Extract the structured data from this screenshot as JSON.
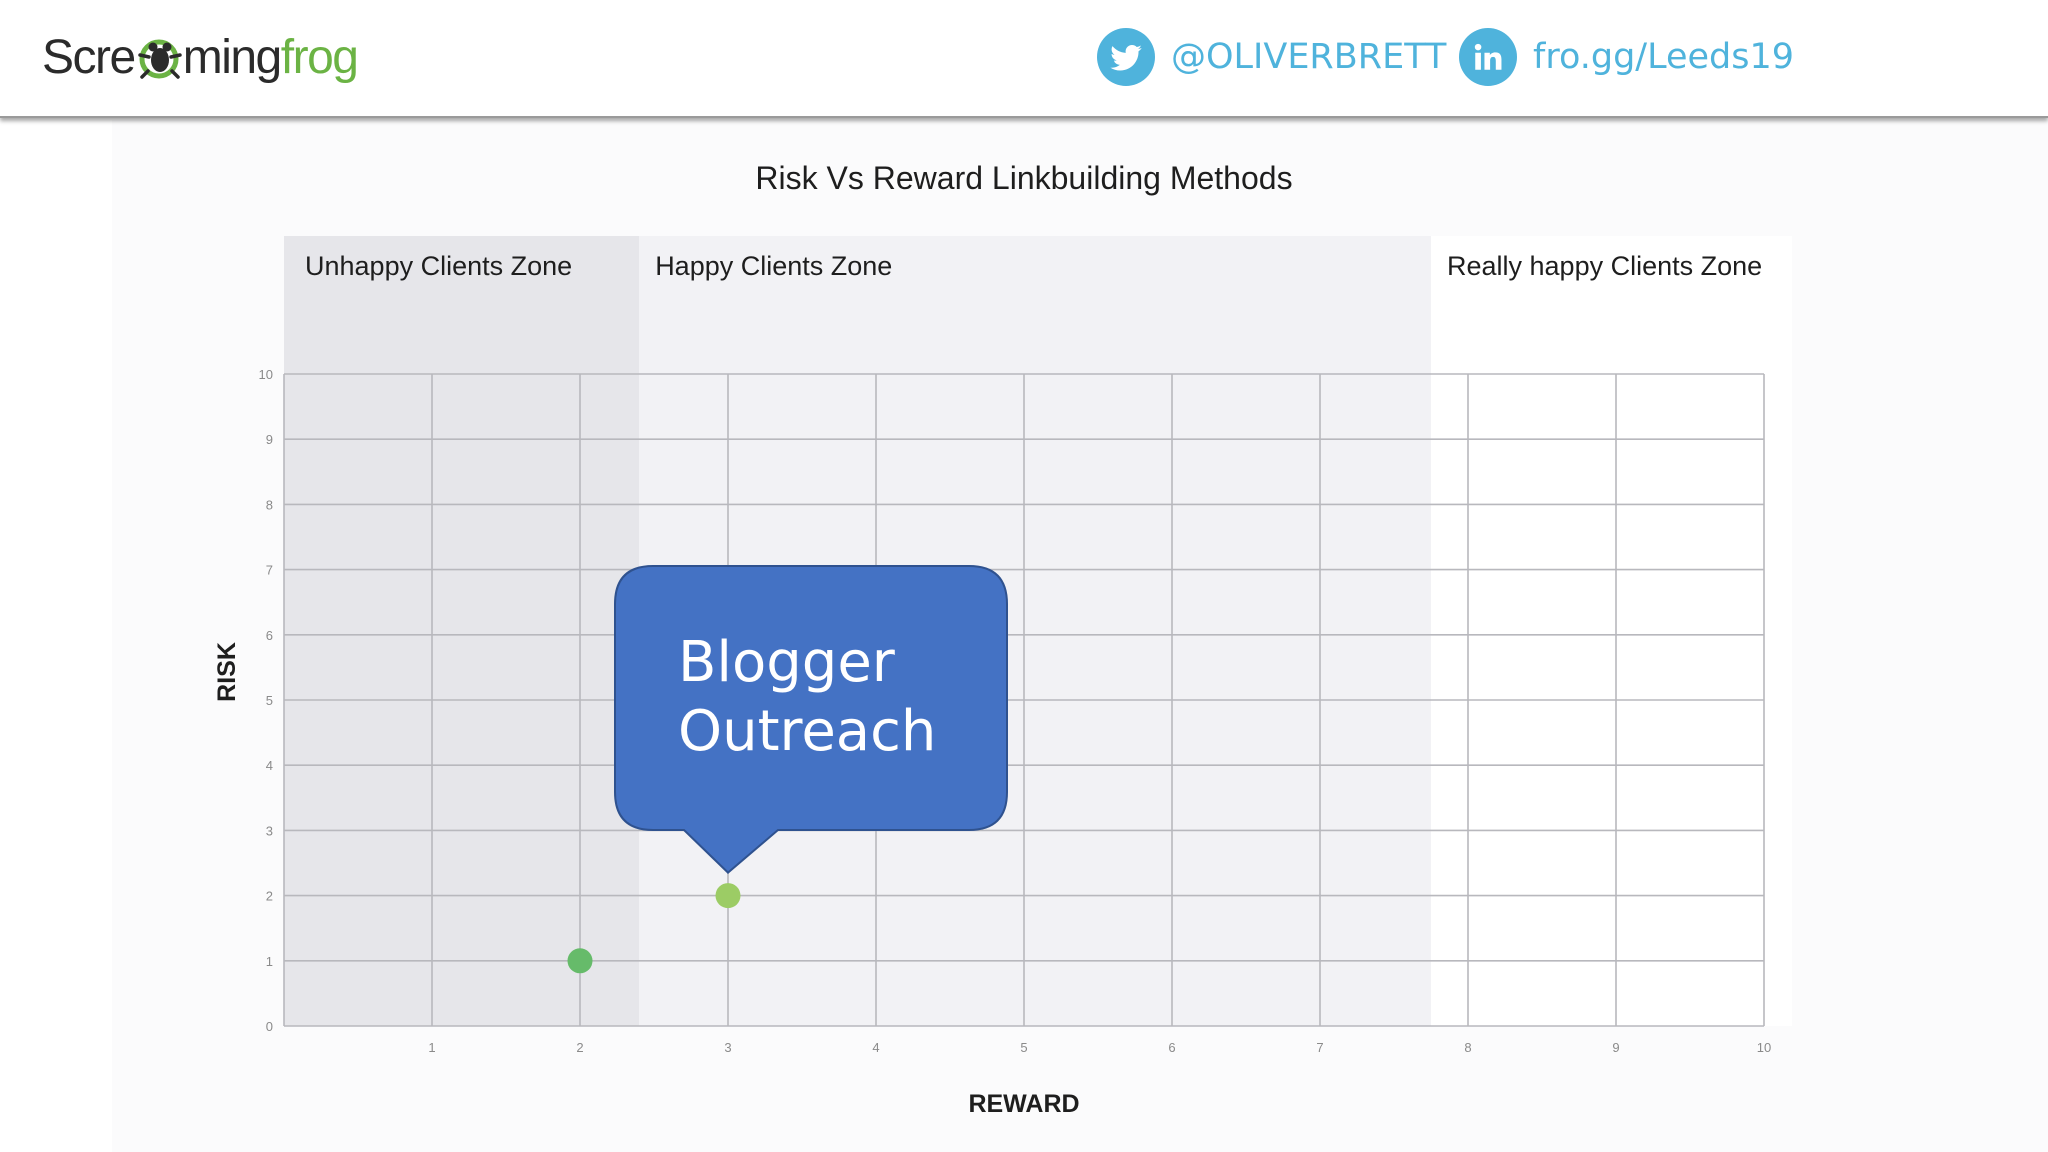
{
  "header": {
    "logo": {
      "part1": "Scre",
      "part2": "ming",
      "part3": "frog"
    },
    "twitter": {
      "icon": "twitter-bird-icon",
      "handle": "@OLIVERBRETT"
    },
    "linkedin": {
      "icon": "linkedin-icon",
      "link": "fro.gg/Leeds19"
    }
  },
  "colors": {
    "accent_blue": "#4fb3dc",
    "brand_green": "#6bb344",
    "callout_fill": "#4472c4",
    "point_dark": "#66bb6a",
    "point_light": "#9ccc65"
  },
  "chart_data": {
    "type": "scatter",
    "title": "Risk Vs Reward Linkbuilding Methods",
    "xlabel": "REWARD",
    "ylabel": "RISK",
    "xlim": [
      0,
      10
    ],
    "ylim": [
      0,
      10
    ],
    "grid": true,
    "x_ticks": [
      1,
      2,
      3,
      4,
      5,
      6,
      7,
      8,
      9,
      10
    ],
    "y_ticks": [
      0,
      1,
      2,
      3,
      4,
      5,
      6,
      7,
      8,
      9,
      10
    ],
    "zones": [
      {
        "label": "Unhappy Clients Zone",
        "x_from": 0,
        "x_to": 2.4
      },
      {
        "label": "Happy Clients Zone",
        "x_from": 2.4,
        "x_to": 7.75
      },
      {
        "label": "Really happy Clients Zone",
        "x_from": 7.75,
        "x_to": 10
      }
    ],
    "points": [
      {
        "x": 2,
        "y": 1,
        "color": "#66bb6a"
      },
      {
        "x": 3,
        "y": 2,
        "color": "#9ccc65"
      }
    ],
    "annotation": {
      "lines": [
        "Blogger",
        "Outreach"
      ],
      "target_point": 1
    }
  }
}
